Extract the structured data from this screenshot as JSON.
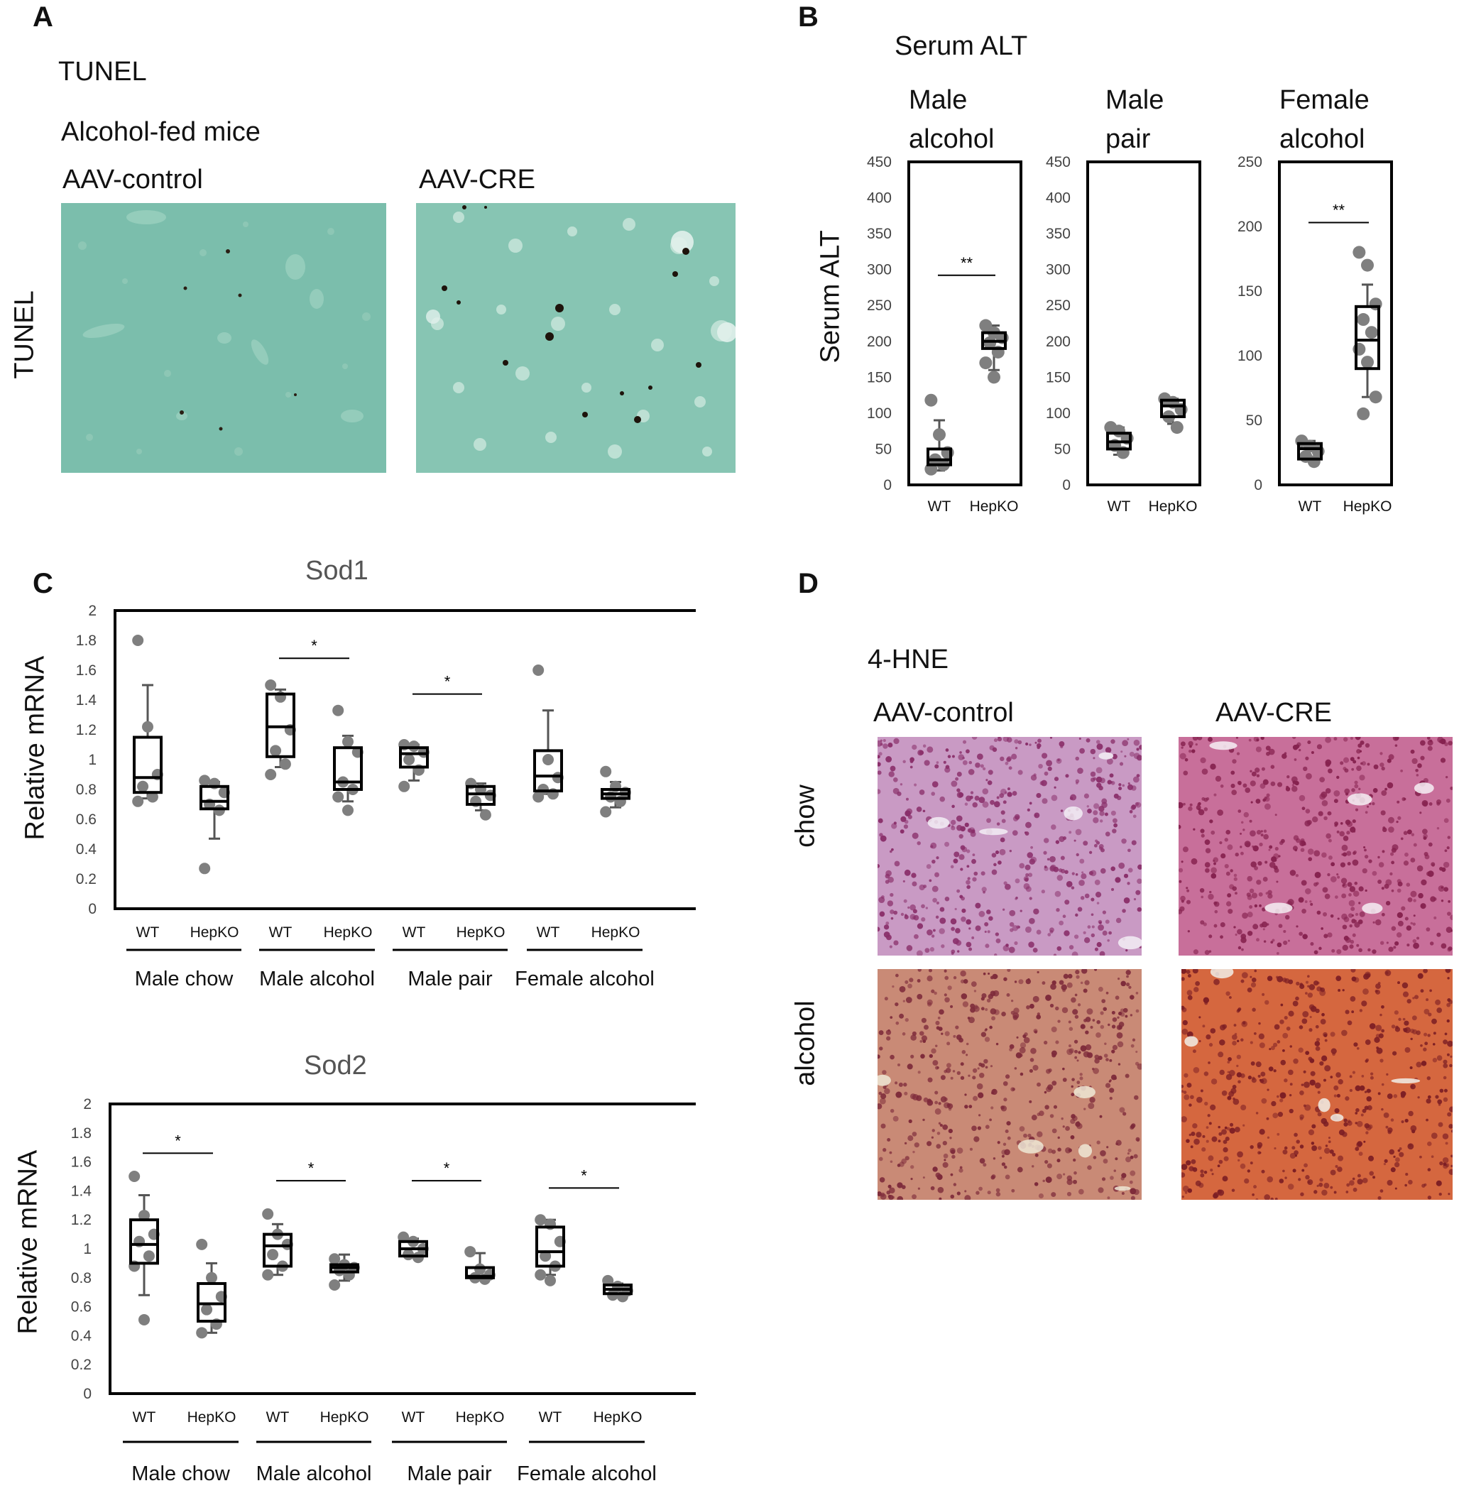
{
  "panels": {
    "A": {
      "letter": "A",
      "title": "TUNEL",
      "subtitle": "Alcohol-fed mice",
      "row_label": "TUNEL",
      "col_labels": [
        "AAV-control",
        "AAV-CRE"
      ],
      "colors": {
        "background": "#79bcaa",
        "stain": "#1e140c"
      }
    },
    "B": {
      "letter": "B",
      "title": "Serum ALT",
      "ylabel": "Serum ALT",
      "subpanels": [
        {
          "title_lines": [
            "Male",
            "alcohol"
          ]
        },
        {
          "title_lines": [
            "Male",
            "pair"
          ]
        },
        {
          "title_lines": [
            "Female",
            "alcohol"
          ]
        }
      ]
    },
    "C": {
      "letter": "C",
      "sod1_title": "Sod1",
      "sod2_title": "Sod2",
      "ylabel": "Relative mRNA",
      "group_labels": [
        "Male  chow",
        "Male alcohol",
        "Male pair",
        "Female alcohol"
      ]
    },
    "D": {
      "letter": "D",
      "title": "4-HNE",
      "col_labels": [
        "AAV-control",
        "AAV-CRE"
      ],
      "row_labels": [
        "chow",
        "alcohol"
      ],
      "colors": {
        "chow": "#c27aa8",
        "alcohol": "#c87860"
      }
    }
  },
  "chart_data": [
    {
      "type": "box",
      "title": "Male alcohol",
      "ylabel": "Serum ALT",
      "ylim": [
        0,
        450
      ],
      "yticks": [
        0,
        50,
        100,
        150,
        200,
        250,
        300,
        350,
        400,
        450
      ],
      "categories": [
        "WT",
        "HepKO"
      ],
      "boxes": [
        {
          "min": 20,
          "q1": 28,
          "median": 35,
          "q3": 50,
          "max": 90,
          "points": [
            118,
            70,
            45,
            35,
            28,
            22
          ]
        },
        {
          "min": 160,
          "q1": 190,
          "median": 200,
          "q3": 212,
          "max": 222,
          "points": [
            222,
            212,
            205,
            198,
            185,
            170,
            150
          ]
        }
      ],
      "significance": [
        {
          "between": [
            "WT",
            "HepKO"
          ],
          "label": "**",
          "y": 292
        }
      ]
    },
    {
      "type": "box",
      "title": "Male pair",
      "ylim": [
        0,
        450
      ],
      "yticks": [
        0,
        50,
        100,
        150,
        200,
        250,
        300,
        350,
        400,
        450
      ],
      "categories": [
        "WT",
        "HepKO"
      ],
      "boxes": [
        {
          "min": 42,
          "q1": 50,
          "median": 60,
          "q3": 72,
          "max": 80,
          "points": [
            80,
            75,
            65,
            55,
            45
          ]
        },
        {
          "min": 85,
          "q1": 95,
          "median": 110,
          "q3": 118,
          "max": 120,
          "points": [
            120,
            115,
            105,
            95,
            80
          ]
        }
      ],
      "significance": []
    },
    {
      "type": "box",
      "title": "Female alcohol",
      "ylim": [
        0,
        250
      ],
      "yticks": [
        0,
        50,
        100,
        150,
        200,
        250
      ],
      "categories": [
        "WT",
        "HepKO"
      ],
      "boxes": [
        {
          "min": 20,
          "q1": 20,
          "median": 28,
          "q3": 32,
          "max": 34,
          "points": [
            34,
            30,
            26,
            22,
            18
          ]
        },
        {
          "min": 68,
          "q1": 90,
          "median": 112,
          "q3": 138,
          "max": 155,
          "points": [
            180,
            170,
            140,
            128,
            118,
            105,
            95,
            68,
            55
          ]
        }
      ],
      "significance": [
        {
          "between": [
            "WT",
            "HepKO"
          ],
          "label": "**",
          "y": 203
        }
      ]
    },
    {
      "type": "box",
      "title": "Sod1",
      "ylabel": "Relative mRNA",
      "ylim": [
        0,
        2
      ],
      "yticks": [
        0,
        0.2,
        0.4,
        0.6,
        0.8,
        1,
        1.2,
        1.4,
        1.6,
        1.8,
        2
      ],
      "groups": [
        "Male  chow",
        "Male alcohol",
        "Male pair",
        "Female alcohol"
      ],
      "categories": [
        "WT",
        "HepKO",
        "WT",
        "HepKO",
        "WT",
        "HepKO",
        "WT",
        "HepKO"
      ],
      "boxes": [
        {
          "min": 0.74,
          "q1": 0.78,
          "median": 0.88,
          "q3": 1.15,
          "max": 1.5,
          "points": [
            1.8,
            1.22,
            0.9,
            0.82,
            0.75,
            0.72
          ]
        },
        {
          "min": 0.47,
          "q1": 0.67,
          "median": 0.72,
          "q3": 0.82,
          "max": 0.85,
          "points": [
            0.86,
            0.84,
            0.78,
            0.7,
            0.66,
            0.27
          ]
        },
        {
          "min": 0.95,
          "q1": 1.02,
          "median": 1.22,
          "q3": 1.44,
          "max": 1.47,
          "points": [
            1.5,
            1.42,
            1.2,
            1.06,
            0.97,
            0.9
          ]
        },
        {
          "min": 0.72,
          "q1": 0.8,
          "median": 0.85,
          "q3": 1.08,
          "max": 1.16,
          "points": [
            1.33,
            1.12,
            1.05,
            0.85,
            0.8,
            0.75,
            0.66
          ]
        },
        {
          "min": 0.86,
          "q1": 0.95,
          "median": 1.04,
          "q3": 1.08,
          "max": 1.1,
          "points": [
            1.1,
            1.09,
            1.05,
            1.0,
            0.93,
            0.82
          ]
        },
        {
          "min": 0.66,
          "q1": 0.7,
          "median": 0.77,
          "q3": 0.82,
          "max": 0.84,
          "points": [
            0.84,
            0.8,
            0.76,
            0.72,
            0.63
          ]
        },
        {
          "min": 0.77,
          "q1": 0.79,
          "median": 0.89,
          "q3": 1.06,
          "max": 1.33,
          "points": [
            1.6,
            1.0,
            0.88,
            0.8,
            0.77,
            0.75
          ]
        },
        {
          "min": 0.68,
          "q1": 0.74,
          "median": 0.77,
          "q3": 0.8,
          "max": 0.85,
          "points": [
            0.92,
            0.82,
            0.78,
            0.75,
            0.72,
            0.65
          ]
        }
      ],
      "significance": [
        {
          "between": [
            2,
            3
          ],
          "label": "*",
          "y": 1.68
        },
        {
          "between": [
            4,
            5
          ],
          "label": "*",
          "y": 1.44
        }
      ]
    },
    {
      "type": "box",
      "title": "Sod2",
      "ylabel": "Relative mRNA",
      "ylim": [
        0,
        2
      ],
      "yticks": [
        0,
        0.2,
        0.4,
        0.6,
        0.8,
        1,
        1.2,
        1.4,
        1.6,
        1.8,
        2
      ],
      "groups": [
        "Male  chow",
        "Male alcohol",
        "Male pair",
        "Female alcohol"
      ],
      "categories": [
        "WT",
        "HepKO",
        "WT",
        "HepKO",
        "WT",
        "HepKO",
        "WT",
        "HepKO"
      ],
      "boxes": [
        {
          "min": 0.68,
          "q1": 0.9,
          "median": 1.03,
          "q3": 1.2,
          "max": 1.37,
          "points": [
            1.5,
            1.23,
            1.1,
            1.05,
            0.95,
            0.88,
            0.51
          ]
        },
        {
          "min": 0.42,
          "q1": 0.5,
          "median": 0.62,
          "q3": 0.76,
          "max": 0.9,
          "points": [
            1.03,
            0.8,
            0.67,
            0.58,
            0.48,
            0.42
          ]
        },
        {
          "min": 0.82,
          "q1": 0.88,
          "median": 1.02,
          "q3": 1.1,
          "max": 1.17,
          "points": [
            1.24,
            1.1,
            1.03,
            0.96,
            0.88,
            0.82
          ]
        },
        {
          "min": 0.78,
          "q1": 0.84,
          "median": 0.87,
          "q3": 0.89,
          "max": 0.96,
          "points": [
            0.93,
            0.89,
            0.87,
            0.85,
            0.82,
            0.75
          ]
        },
        {
          "min": 0.94,
          "q1": 0.95,
          "median": 1.0,
          "q3": 1.05,
          "max": 1.07,
          "points": [
            1.08,
            1.05,
            1.0,
            0.96,
            0.94
          ]
        },
        {
          "min": 0.79,
          "q1": 0.8,
          "median": 0.81,
          "q3": 0.87,
          "max": 0.97,
          "points": [
            0.98,
            0.86,
            0.82,
            0.8,
            0.79
          ]
        },
        {
          "min": 0.82,
          "q1": 0.88,
          "median": 0.98,
          "q3": 1.15,
          "max": 1.2,
          "points": [
            1.2,
            1.17,
            1.05,
            0.95,
            0.88,
            0.82,
            0.78
          ]
        },
        {
          "min": 0.68,
          "q1": 0.69,
          "median": 0.72,
          "q3": 0.75,
          "max": 0.76,
          "points": [
            0.78,
            0.74,
            0.71,
            0.68,
            0.67
          ]
        }
      ],
      "significance": [
        {
          "between": [
            0,
            1
          ],
          "label": "*",
          "y": 1.66
        },
        {
          "between": [
            2,
            3
          ],
          "label": "*",
          "y": 1.47
        },
        {
          "between": [
            4,
            5
          ],
          "label": "*",
          "y": 1.47
        },
        {
          "between": [
            6,
            7
          ],
          "label": "*",
          "y": 1.42
        }
      ]
    }
  ]
}
